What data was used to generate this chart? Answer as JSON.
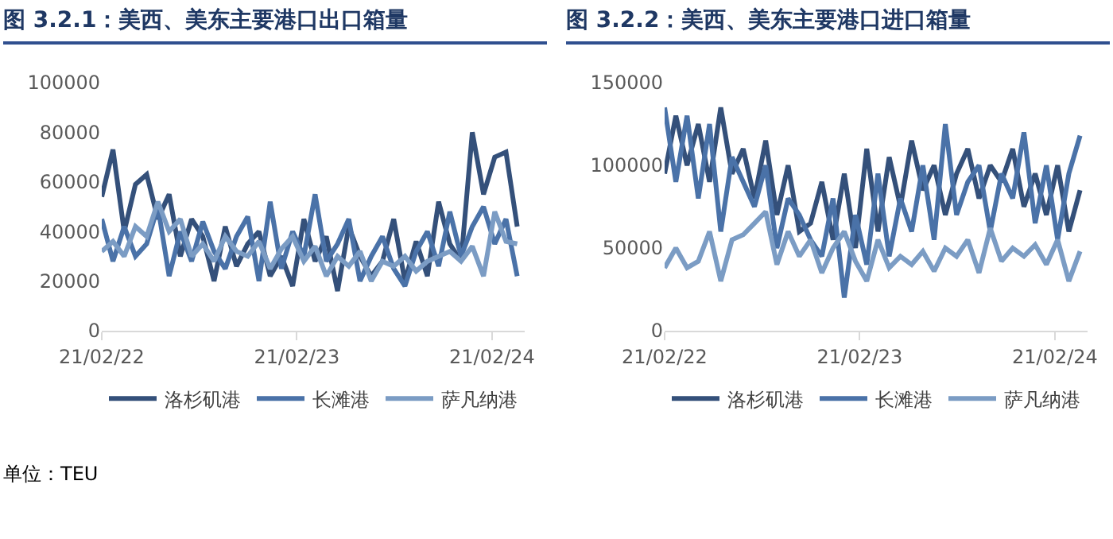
{
  "chart_data": [
    {
      "type": "line",
      "title": "图 3.2.1：美西、美东主要港口出口箱量",
      "x": [
        "2022-02-21",
        "2022-03-14",
        "2022-04-04",
        "2022-04-25",
        "2022-05-16",
        "2022-06-06",
        "2022-06-27",
        "2022-07-18",
        "2022-08-08",
        "2022-08-29",
        "2022-09-19",
        "2022-10-10",
        "2022-10-31",
        "2022-11-21",
        "2022-12-12",
        "2023-01-02",
        "2023-01-23",
        "2023-02-13",
        "2023-03-06",
        "2023-03-27",
        "2023-04-17",
        "2023-05-08",
        "2023-05-29",
        "2023-06-19",
        "2023-07-10",
        "2023-07-31",
        "2023-08-21",
        "2023-09-11",
        "2023-10-02",
        "2023-10-23",
        "2023-11-13",
        "2023-12-04",
        "2023-12-25",
        "2024-01-15",
        "2024-02-05",
        "2024-02-26",
        "2024-03-18",
        "2024-04-08"
      ],
      "series": [
        {
          "name": "洛杉矶港",
          "color": "#34507a",
          "values": [
            54000,
            73000,
            40000,
            59000,
            63000,
            45000,
            55000,
            30000,
            45000,
            38000,
            20000,
            42000,
            26000,
            35000,
            40000,
            22000,
            30000,
            18000,
            45000,
            28000,
            38000,
            16000,
            42000,
            30000,
            22000,
            28000,
            45000,
            20000,
            36000,
            22000,
            52000,
            35000,
            28000,
            80000,
            55000,
            70000,
            72000,
            42000
          ]
        },
        {
          "name": "长滩港",
          "color": "#4a72a8",
          "values": [
            45000,
            28000,
            42000,
            30000,
            35000,
            50000,
            22000,
            40000,
            28000,
            44000,
            32000,
            25000,
            38000,
            46000,
            20000,
            52000,
            25000,
            40000,
            30000,
            55000,
            28000,
            35000,
            45000,
            20000,
            30000,
            38000,
            25000,
            18000,
            32000,
            40000,
            26000,
            48000,
            30000,
            42000,
            50000,
            35000,
            45000,
            22000
          ]
        },
        {
          "name": "萨凡纳港",
          "color": "#7b9cc4",
          "values": [
            32000,
            36000,
            30000,
            42000,
            38000,
            52000,
            40000,
            45000,
            30000,
            35000,
            28000,
            38000,
            32000,
            30000,
            36000,
            25000,
            33000,
            38000,
            28000,
            34000,
            22000,
            30000,
            26000,
            32000,
            20000,
            28000,
            26000,
            30000,
            24000,
            28000,
            30000,
            32000,
            28000,
            34000,
            22000,
            48000,
            36000,
            35000
          ]
        }
      ],
      "ylim": [
        0,
        100000
      ],
      "yticks": [
        0,
        20000,
        40000,
        60000,
        80000,
        100000
      ],
      "xlim": [
        "2022-02-21",
        "2024-04-22"
      ],
      "xticks": [
        {
          "value": "2022-02-21",
          "label": "21/02/22"
        },
        {
          "value": "2023-02-21",
          "label": "21/02/23"
        },
        {
          "value": "2024-02-21",
          "label": "21/02/24"
        }
      ],
      "grid": false,
      "legend": "bottom",
      "annotations": [
        "单位：TEU"
      ]
    },
    {
      "type": "line",
      "title": "图 3.2.2：美西、美东主要港口进口箱量",
      "x": [
        "2022-02-21",
        "2022-03-14",
        "2022-04-04",
        "2022-04-25",
        "2022-05-16",
        "2022-06-06",
        "2022-06-27",
        "2022-07-18",
        "2022-08-08",
        "2022-08-29",
        "2022-09-19",
        "2022-10-10",
        "2022-10-31",
        "2022-11-21",
        "2022-12-12",
        "2023-01-02",
        "2023-01-23",
        "2023-02-13",
        "2023-03-06",
        "2023-03-27",
        "2023-04-17",
        "2023-05-08",
        "2023-05-29",
        "2023-06-19",
        "2023-07-10",
        "2023-07-31",
        "2023-08-21",
        "2023-09-11",
        "2023-10-02",
        "2023-10-23",
        "2023-11-13",
        "2023-12-04",
        "2023-12-25",
        "2024-01-15",
        "2024-02-05",
        "2024-02-26",
        "2024-03-18",
        "2024-04-08"
      ],
      "series": [
        {
          "name": "洛杉矶港",
          "color": "#34507a",
          "values": [
            95000,
            130000,
            100000,
            125000,
            90000,
            135000,
            95000,
            110000,
            80000,
            115000,
            70000,
            100000,
            60000,
            65000,
            90000,
            55000,
            95000,
            50000,
            110000,
            60000,
            105000,
            75000,
            115000,
            85000,
            100000,
            70000,
            95000,
            110000,
            80000,
            100000,
            90000,
            110000,
            75000,
            95000,
            70000,
            100000,
            60000,
            85000
          ]
        },
        {
          "name": "长滩港",
          "color": "#4a72a8",
          "values": [
            135000,
            90000,
            130000,
            80000,
            125000,
            60000,
            105000,
            90000,
            75000,
            100000,
            50000,
            80000,
            70000,
            55000,
            45000,
            80000,
            20000,
            70000,
            40000,
            95000,
            45000,
            80000,
            60000,
            100000,
            55000,
            125000,
            70000,
            90000,
            100000,
            60000,
            95000,
            80000,
            120000,
            65000,
            100000,
            55000,
            95000,
            118000
          ]
        },
        {
          "name": "萨凡纳港",
          "color": "#7b9cc4",
          "values": [
            38000,
            50000,
            38000,
            42000,
            60000,
            30000,
            55000,
            58000,
            65000,
            72000,
            40000,
            60000,
            45000,
            55000,
            35000,
            50000,
            60000,
            42000,
            30000,
            55000,
            38000,
            45000,
            40000,
            48000,
            36000,
            50000,
            45000,
            55000,
            35000,
            62000,
            42000,
            50000,
            45000,
            52000,
            40000,
            55000,
            30000,
            48000
          ]
        }
      ],
      "ylim": [
        0,
        150000
      ],
      "yticks": [
        0,
        50000,
        100000,
        150000
      ],
      "xlim": [
        "2022-02-21",
        "2024-04-22"
      ],
      "xticks": [
        {
          "value": "2022-02-21",
          "label": "21/02/22"
        },
        {
          "value": "2023-02-21",
          "label": "21/02/23"
        },
        {
          "value": "2024-02-21",
          "label": "21/02/24"
        }
      ],
      "grid": false,
      "legend": "bottom"
    }
  ]
}
